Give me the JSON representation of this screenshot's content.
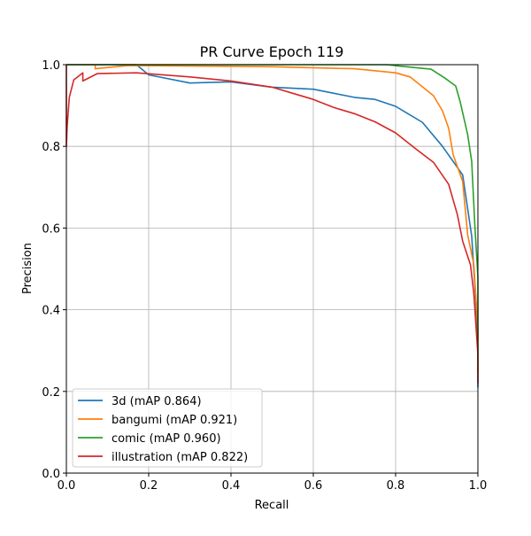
{
  "chart_data": {
    "type": "line",
    "title": "PR Curve Epoch 119",
    "xlabel": "Recall",
    "ylabel": "Precision",
    "xlim": [
      0,
      1
    ],
    "ylim": [
      0,
      1
    ],
    "grid": true,
    "legend_position": "lower-left",
    "x_ticks": [
      "0.0",
      "0.2",
      "0.4",
      "0.6",
      "0.8",
      "1.0"
    ],
    "y_ticks": [
      "0.0",
      "0.2",
      "0.4",
      "0.6",
      "0.8",
      "1.0"
    ],
    "series": [
      {
        "name": "3d (mAP 0.864)",
        "color": "#1f77b4",
        "x": [
          0,
          0.17,
          0.2,
          0.3,
          0.4,
          0.5,
          0.6,
          0.65,
          0.7,
          0.75,
          0.8,
          0.865,
          0.914,
          0.963,
          0.985,
          0.995,
          1.0,
          1.0
        ],
        "y": [
          1.0,
          1.0,
          0.975,
          0.955,
          0.958,
          0.945,
          0.94,
          0.93,
          0.92,
          0.915,
          0.898,
          0.859,
          0.8,
          0.73,
          0.58,
          0.42,
          0.3,
          0.21
        ]
      },
      {
        "name": "bangumi (mAP 0.921)",
        "color": "#ff7f0e",
        "x": [
          0,
          0.07,
          0.07,
          0.15,
          0.5,
          0.7,
          0.8,
          0.835,
          0.892,
          0.914,
          0.929,
          0.94,
          0.963,
          0.975,
          0.99,
          1.0,
          1.0
        ],
        "y": [
          1.0,
          1.0,
          0.99,
          0.998,
          0.995,
          0.99,
          0.98,
          0.97,
          0.924,
          0.887,
          0.844,
          0.779,
          0.714,
          0.584,
          0.51,
          0.35,
          0.24
        ]
      },
      {
        "name": "comic (mAP 0.960)",
        "color": "#2ca02c",
        "x": [
          0,
          0.78,
          0.806,
          0.886,
          0.92,
          0.946,
          0.957,
          0.975,
          0.985,
          0.993,
          1.0,
          1.0
        ],
        "y": [
          1.0,
          1.0,
          0.997,
          0.989,
          0.967,
          0.948,
          0.909,
          0.829,
          0.763,
          0.6,
          0.48,
          0.25
        ]
      },
      {
        "name": "illustration (mAP 0.822)",
        "color": "#d62728",
        "x": [
          0,
          0,
          0.002,
          0.007,
          0.018,
          0.04,
          0.04,
          0.075,
          0.17,
          0.3,
          0.4,
          0.5,
          0.55,
          0.6,
          0.65,
          0.7,
          0.75,
          0.8,
          0.849,
          0.892,
          0.929,
          0.95,
          0.963,
          0.982,
          0.99,
          1.0,
          1.0
        ],
        "y": [
          1.0,
          0.8,
          0.85,
          0.92,
          0.963,
          0.98,
          0.96,
          0.978,
          0.98,
          0.97,
          0.96,
          0.945,
          0.93,
          0.915,
          0.895,
          0.88,
          0.86,
          0.833,
          0.794,
          0.761,
          0.707,
          0.633,
          0.568,
          0.51,
          0.44,
          0.29,
          0.22
        ]
      }
    ]
  }
}
